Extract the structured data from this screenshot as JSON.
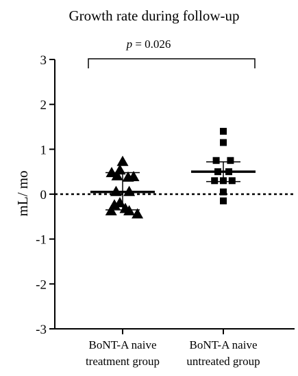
{
  "chart_data": {
    "type": "scatter",
    "title": "Growth rate during follow-up",
    "ylabel": "mL/ mo",
    "xlabel": "",
    "ylim": [
      -3,
      3
    ],
    "yticks": [
      3,
      2,
      1,
      0,
      -1,
      -2,
      -3
    ],
    "reference_line": {
      "y": 0,
      "style": "dotted"
    },
    "grid": false,
    "legend": "none",
    "annotation": {
      "prefix": "p",
      "text": " = 0.026"
    },
    "series": [
      {
        "category_lines": [
          "BoNT-A naive",
          "treatment group"
        ],
        "marker": "triangle",
        "points": [
          {
            "offset": -1.0,
            "y": 0.47
          },
          {
            "offset": -0.5,
            "y": 0.4
          },
          {
            "offset": 0.5,
            "y": 0.37
          },
          {
            "offset": 1.0,
            "y": 0.38
          },
          {
            "offset": 0.0,
            "y": 0.72
          },
          {
            "offset": -0.25,
            "y": 0.53
          },
          {
            "offset": -0.6,
            "y": 0.05
          },
          {
            "offset": 0.6,
            "y": 0.05
          },
          {
            "offset": -0.75,
            "y": -0.25
          },
          {
            "offset": -0.25,
            "y": -0.2
          },
          {
            "offset": 0.25,
            "y": -0.33
          },
          {
            "offset": -1.05,
            "y": -0.38
          },
          {
            "offset": 0.6,
            "y": -0.38
          },
          {
            "offset": 1.35,
            "y": -0.45
          }
        ],
        "mean": 0.05,
        "error_low": -0.35,
        "error_high": 0.48
      },
      {
        "category_lines": [
          "BoNT-A naive",
          "untreated group"
        ],
        "marker": "square",
        "points": [
          {
            "offset": 0.0,
            "y": 1.4
          },
          {
            "offset": 0.0,
            "y": 1.15
          },
          {
            "offset": -0.65,
            "y": 0.75
          },
          {
            "offset": 0.65,
            "y": 0.75
          },
          {
            "offset": -0.5,
            "y": 0.5
          },
          {
            "offset": 0.5,
            "y": 0.5
          },
          {
            "offset": -0.8,
            "y": 0.3
          },
          {
            "offset": 0.0,
            "y": 0.3
          },
          {
            "offset": 0.8,
            "y": 0.3
          },
          {
            "offset": 0.0,
            "y": 0.05
          },
          {
            "offset": 0.0,
            "y": -0.15
          }
        ],
        "mean": 0.5,
        "error_low": 0.28,
        "error_high": 0.72
      }
    ]
  }
}
